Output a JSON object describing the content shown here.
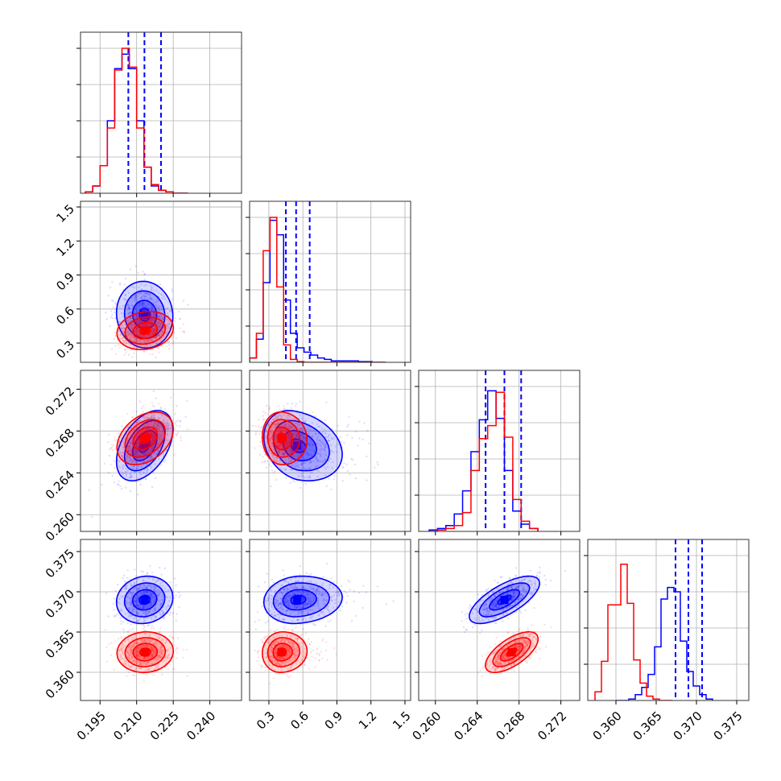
{
  "colors": {
    "blue": "#0000ff",
    "red": "#ff0000",
    "grid": "#b0b0b0",
    "frame": "#333333"
  },
  "chart_data": {
    "type": "corner",
    "title": "",
    "grid": true,
    "parameters": [
      {
        "name": "",
        "range": [
          0.187,
          0.253
        ],
        "ticks": [
          "0.195",
          "0.210",
          "0.225",
          "0.240"
        ],
        "tick_values": [
          0.195,
          0.21,
          0.225,
          0.24
        ]
      },
      {
        "name": "",
        "range": [
          0.13,
          1.55
        ],
        "ticks": [
          "0.3",
          "0.6",
          "0.9",
          "1.2",
          "1.5"
        ],
        "tick_values": [
          0.3,
          0.6,
          0.9,
          1.2,
          1.5
        ]
      },
      {
        "name": "",
        "range": [
          0.2584,
          0.2738
        ],
        "ticks": [
          "0.260",
          "0.264",
          "0.268",
          "0.272"
        ],
        "tick_values": [
          0.26,
          0.264,
          0.268,
          0.272
        ]
      },
      {
        "name": "",
        "range": [
          0.3565,
          0.3765
        ],
        "ticks": [
          "0.360",
          "0.365",
          "0.370",
          "0.375"
        ],
        "tick_values": [
          0.36,
          0.365,
          0.37,
          0.375
        ]
      }
    ],
    "series": [
      {
        "color": "blue",
        "quantiles": [
          [
            0.2066,
            0.2132,
            0.22
          ],
          [
            0.45,
            0.54,
            0.66
          ],
          [
            0.2648,
            0.2666,
            0.2682
          ],
          [
            0.3674,
            0.369,
            0.3707
          ]
        ],
        "means": [
          0.2133,
          0.55,
          0.2666,
          0.369
        ],
        "sigmas": [
          0.0055,
          0.14,
          0.0016,
          0.0014
        ],
        "corr": [
          [
            1,
            -0.05,
            0.45,
            0.1
          ],
          [
            -0.05,
            1,
            -0.25,
            0.1
          ],
          [
            0.45,
            -0.25,
            1,
            0.7
          ],
          [
            0.1,
            0.1,
            0.7,
            1
          ]
        ],
        "marginals": [
          {
            "x0": 0.189,
            "dx": 0.003,
            "heights": [
              0.01,
              0.05,
              0.19,
              0.5,
              0.86,
              0.96,
              0.86,
              0.5,
              0.18,
              0.05,
              0.02,
              0.01,
              0,
              0
            ]
          },
          {
            "x0": 0.13,
            "dx": 0.06,
            "heights": [
              0.03,
              0.16,
              0.55,
              0.98,
              0.88,
              0.43,
              0.2,
              0.1,
              0.07,
              0.05,
              0.03,
              0.02,
              0.01,
              0.01,
              0.01,
              0.01,
              0.005,
              0.005,
              0,
              0
            ]
          },
          {
            "x0": 0.2594,
            "dx": 0.0008,
            "heights": [
              0.01,
              0.02,
              0.04,
              0.12,
              0.28,
              0.55,
              0.77,
              0.97,
              0.78,
              0.42,
              0.14,
              0.05,
              0.02
            ]
          },
          {
            "x0": 0.36,
            "dx": 0.0008,
            "heights": [
              0,
              0,
              0.01,
              0.04,
              0.09,
              0.18,
              0.37,
              0.7,
              0.78,
              0.75,
              0.41,
              0.2,
              0.1,
              0.04,
              0.01
            ]
          }
        ]
      },
      {
        "color": "red",
        "quantiles": null,
        "means": [
          0.2135,
          0.41,
          0.2673,
          0.3625
        ],
        "sigmas": [
          0.0055,
          0.08,
          0.0012,
          0.0012
        ],
        "corr": [
          [
            1,
            0.15,
            0.35,
            0.05
          ],
          [
            0.15,
            1,
            -0.05,
            0.05
          ],
          [
            0.35,
            -0.05,
            1,
            0.65
          ],
          [
            0.05,
            0.05,
            0.65,
            1
          ]
        ],
        "marginals": [
          {
            "x0": 0.189,
            "dx": 0.003,
            "heights": [
              0.01,
              0.05,
              0.19,
              0.45,
              0.85,
              1.0,
              0.87,
              0.45,
              0.18,
              0.06,
              0.02,
              0.01,
              0,
              0
            ]
          },
          {
            "x0": 0.13,
            "dx": 0.06,
            "heights": [
              0.03,
              0.2,
              0.77,
              1.0,
              0.52,
              0.12,
              0.02,
              0.005,
              0,
              0,
              0,
              0,
              0,
              0,
              0,
              0,
              0,
              0,
              0,
              0
            ]
          },
          {
            "x0": 0.2594,
            "dx": 0.0008,
            "heights": [
              0,
              0.01,
              0.02,
              0.04,
              0.13,
              0.42,
              0.64,
              0.73,
              0.96,
              0.65,
              0.22,
              0.07,
              0.02
            ]
          },
          {
            "x0": 0.3574,
            "dx": 0.0008,
            "heights": [
              0.06,
              0.27,
              0.66,
              0.66,
              0.94,
              0.67,
              0.28,
              0.12,
              0.03,
              0.01,
              0,
              0
            ]
          }
        ]
      }
    ]
  }
}
